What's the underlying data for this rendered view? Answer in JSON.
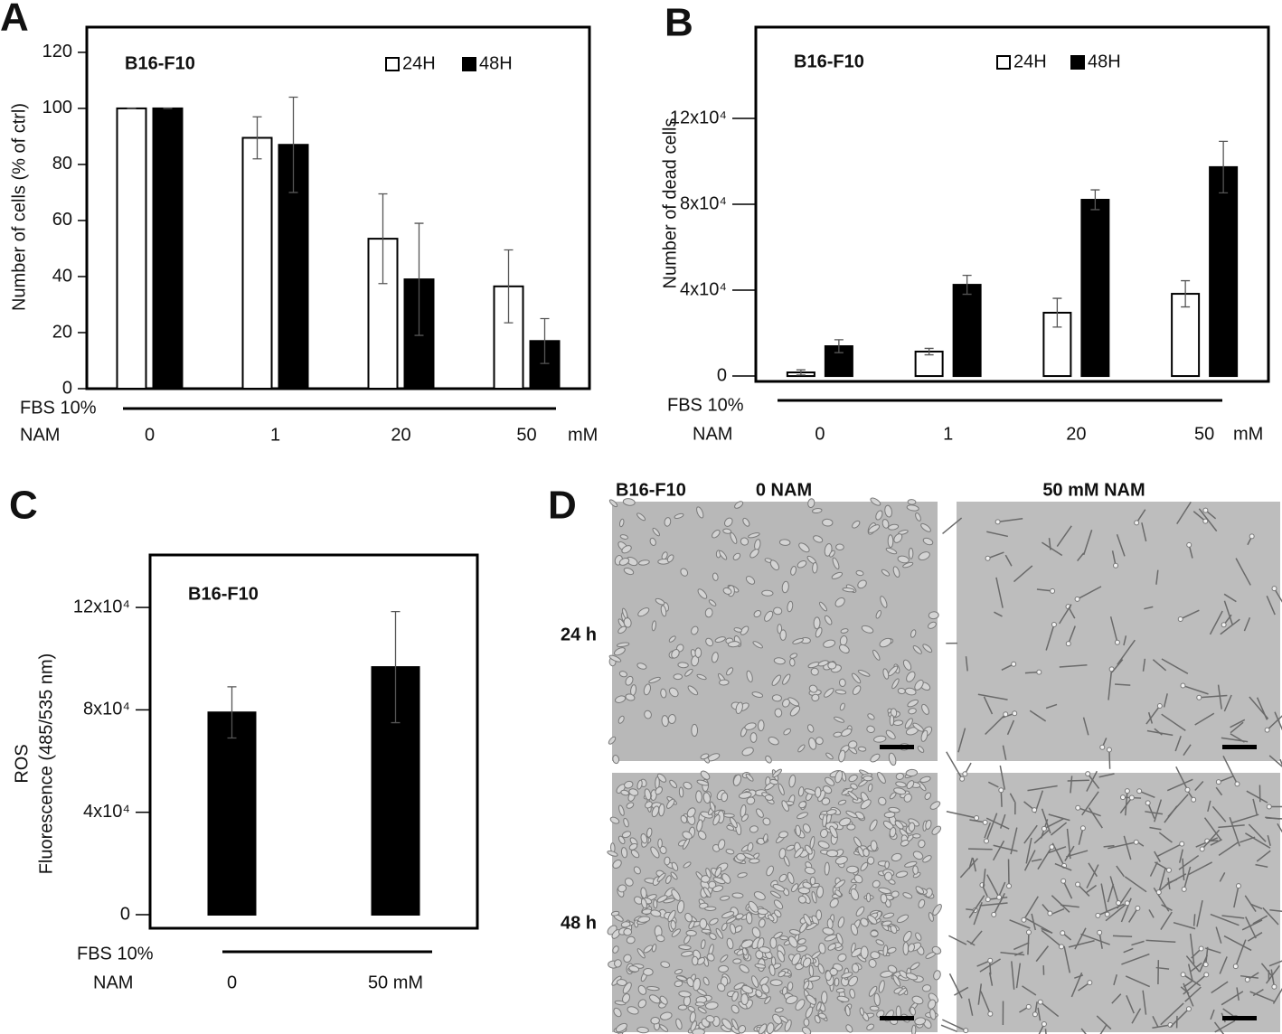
{
  "chart_data": [
    {
      "type": "bar",
      "panel": "A",
      "title": "B16-F10",
      "ylabel": "Number of cells  (% of ctrl)",
      "categories": [
        "0",
        "1",
        "20",
        "50"
      ],
      "unit": "mM",
      "row_labels": [
        "FBS 10%",
        "NAM"
      ],
      "series": [
        {
          "name": "24H",
          "color": "#ffffff",
          "values": [
            100,
            89.5,
            53.5,
            36.5
          ],
          "errors": [
            0,
            7.5,
            16,
            13
          ]
        },
        {
          "name": "48H",
          "color": "#000000",
          "values": [
            100,
            87,
            39,
            17
          ],
          "errors": [
            0,
            17,
            20,
            8
          ]
        }
      ],
      "ylim": [
        0,
        129
      ],
      "yticks": [
        0,
        20,
        40,
        60,
        80,
        100,
        120
      ]
    },
    {
      "type": "bar",
      "panel": "B",
      "title": "B16-F10",
      "ylabel": "Number of dead cells",
      "categories": [
        "0",
        "1",
        "20",
        "50"
      ],
      "unit": "mM",
      "row_labels": [
        "FBS 10%",
        "NAM"
      ],
      "series": [
        {
          "name": "24H",
          "color": "#ffffff",
          "values": [
            1700,
            11400,
            29500,
            38300
          ],
          "errors": [
            1200,
            1500,
            6700,
            6100
          ]
        },
        {
          "name": "48H",
          "color": "#000000",
          "values": [
            13900,
            42500,
            82100,
            97300
          ],
          "errors": [
            3000,
            4400,
            4600,
            12000
          ]
        }
      ],
      "ylim": [
        -2500,
        162500
      ],
      "yticks": [
        0,
        {
          "value": 40000,
          "label": "4x10⁴"
        },
        {
          "value": 80000,
          "label": "8x10⁴"
        },
        {
          "value": 120000,
          "label": "12x10⁴"
        }
      ]
    },
    {
      "type": "bar",
      "panel": "C",
      "title": "B16-F10",
      "ylabel": [
        "ROS",
        "Fluorescence (485/535 nm)"
      ],
      "categories": [
        "0",
        "50 mM"
      ],
      "row_labels": [
        "FBS 10%",
        "NAM"
      ],
      "series": [
        {
          "color": "#000000",
          "values": [
            79000,
            96700
          ],
          "errors": [
            10000,
            21700
          ]
        }
      ],
      "ylim": [
        -5300,
        140500
      ],
      "yticks": [
        0,
        {
          "value": 40000,
          "label": "4x10⁴"
        },
        {
          "value": 80000,
          "label": "8x10⁴"
        },
        {
          "value": 120000,
          "label": "12x10⁴"
        }
      ]
    }
  ],
  "panel_d": {
    "panel": "D",
    "cell_line": "B16-F10",
    "columns": [
      "0 NAM",
      "50 mM NAM"
    ],
    "rows": [
      "24 h",
      "48 h"
    ]
  }
}
